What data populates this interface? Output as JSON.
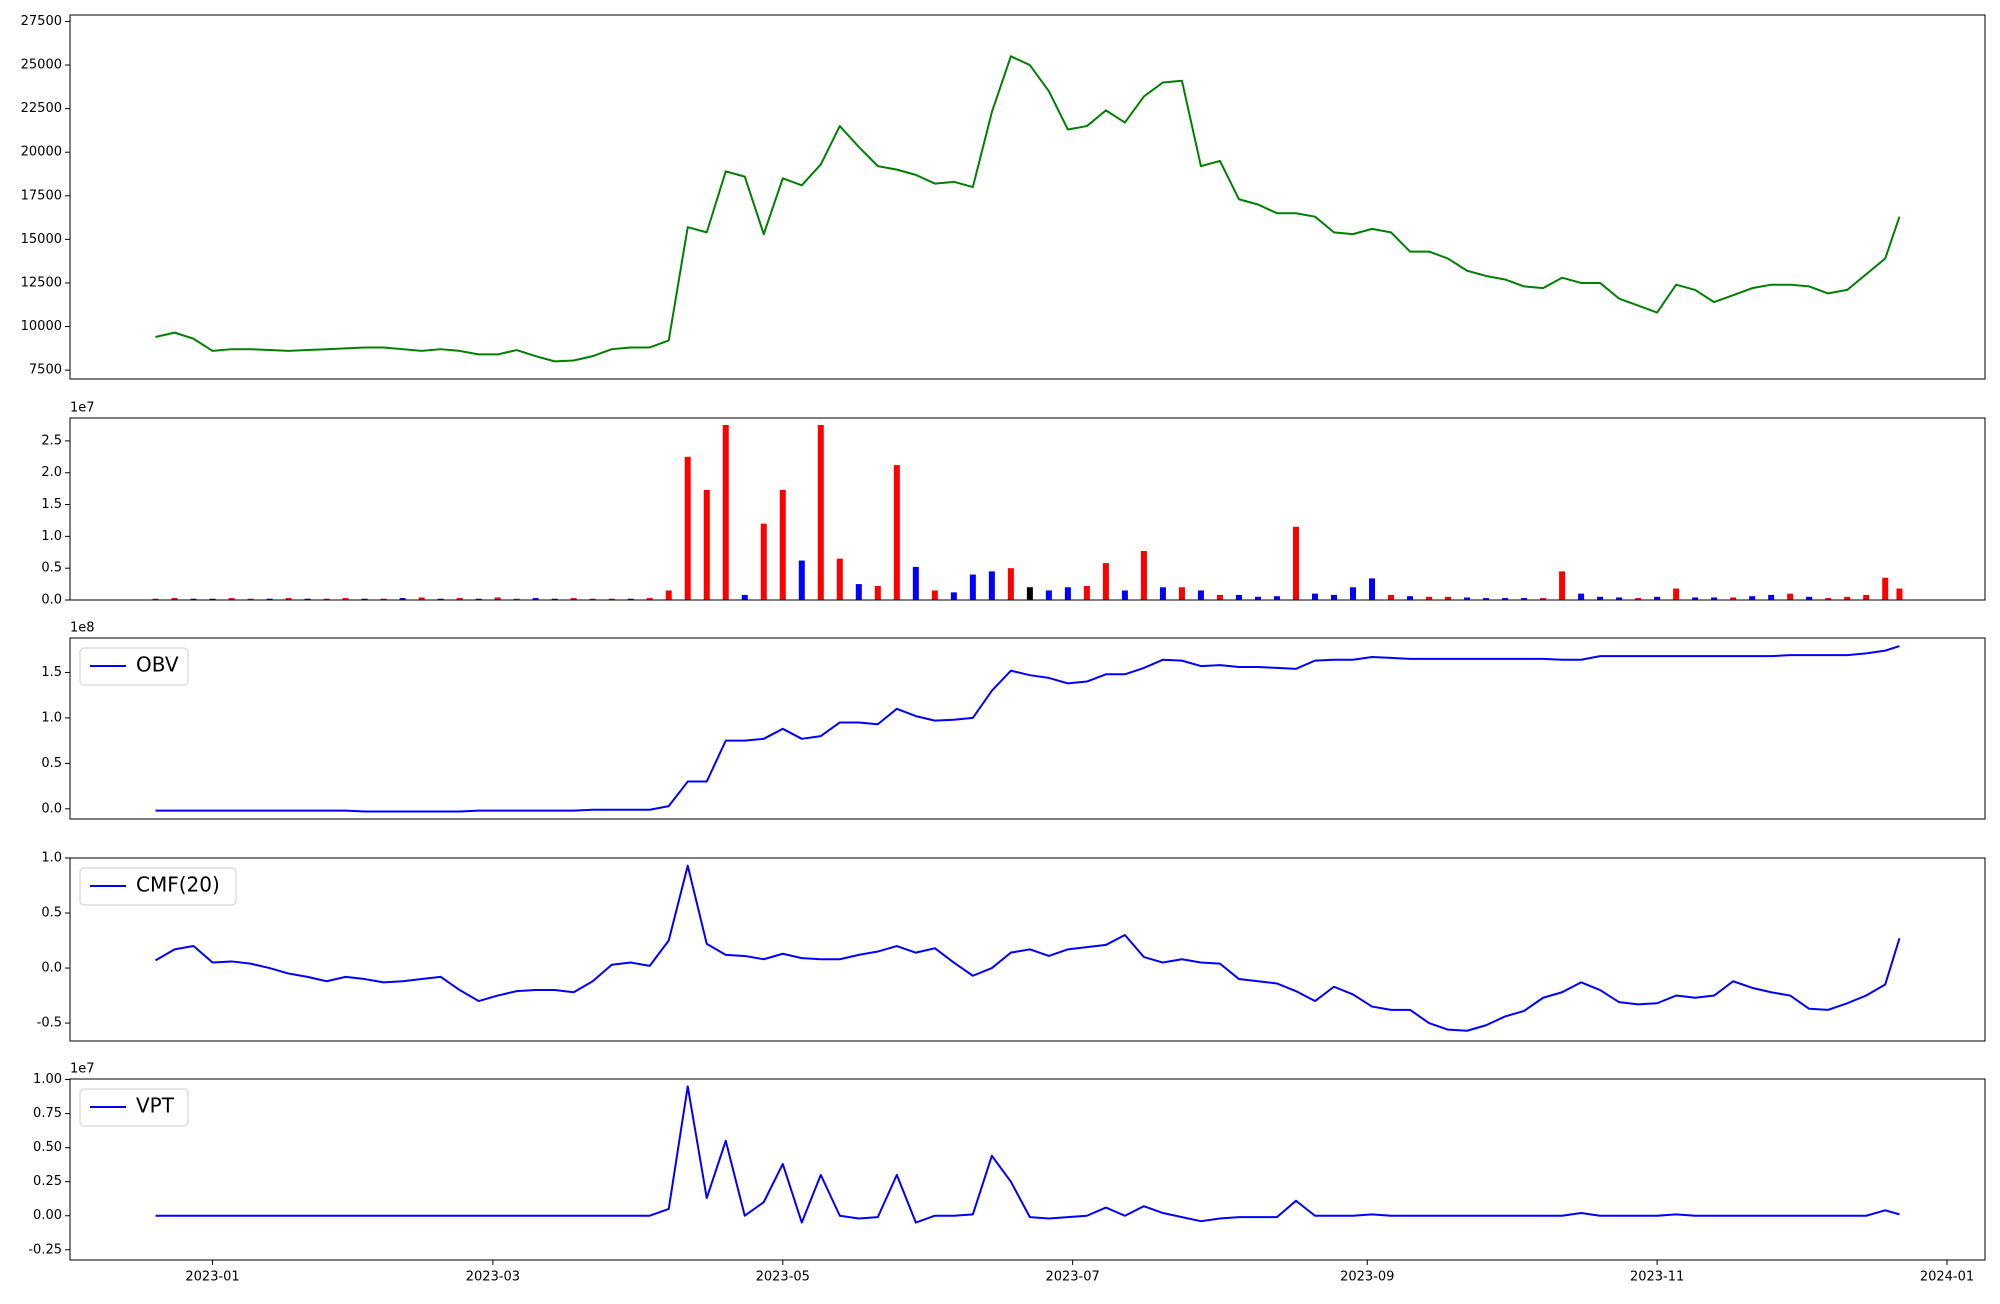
{
  "chart_data": {
    "type": "multi",
    "x": [
      -12,
      -8,
      -4,
      0,
      4,
      8,
      12,
      16,
      20,
      24,
      28,
      32,
      36,
      40,
      44,
      48,
      52,
      56,
      60,
      64,
      68,
      72,
      76,
      80,
      84,
      88,
      92,
      96,
      100,
      104,
      108,
      112,
      116,
      120,
      124,
      128,
      132,
      136,
      140,
      144,
      148,
      152,
      156,
      160,
      164,
      168,
      172,
      176,
      180,
      184,
      188,
      192,
      196,
      200,
      204,
      208,
      212,
      216,
      220,
      224,
      228,
      232,
      236,
      240,
      244,
      248,
      252,
      256,
      260,
      264,
      268,
      272,
      276,
      280,
      284,
      288,
      292,
      296,
      300,
      304,
      308,
      312,
      316,
      320,
      324,
      328,
      332,
      336,
      340,
      344,
      348,
      352,
      355
    ],
    "xlim": [
      -30,
      373
    ],
    "xticks": [
      {
        "value": 0,
        "label": "2023-01"
      },
      {
        "value": 59,
        "label": "2023-03"
      },
      {
        "value": 120,
        "label": "2023-05"
      },
      {
        "value": 181,
        "label": "2023-07"
      },
      {
        "value": 243,
        "label": "2023-09"
      },
      {
        "value": 304,
        "label": "2023-11"
      },
      {
        "value": 365,
        "label": "2024-01"
      }
    ],
    "panels": [
      {
        "type": "line",
        "color": "green",
        "values": [
          9400,
          9650,
          9300,
          8600,
          8700,
          8700,
          8650,
          8600,
          8650,
          8700,
          8750,
          8800,
          8800,
          8700,
          8600,
          8700,
          8600,
          8400,
          8400,
          8650,
          8300,
          8000,
          8050,
          8300,
          8700,
          8800,
          8800,
          9200,
          15700,
          15400,
          18900,
          18600,
          15300,
          18500,
          18100,
          19300,
          21500,
          20300,
          19200,
          19000,
          18700,
          18200,
          18300,
          18000,
          22300,
          25500,
          25000,
          23500,
          21300,
          21500,
          22400,
          21700,
          23200,
          24000,
          24100,
          19200,
          19500,
          17300,
          17000,
          16500,
          16500,
          16300,
          15400,
          15300,
          15600,
          15400,
          14300,
          14300,
          13900,
          13200,
          12900,
          12700,
          12300,
          12200,
          12800,
          12500,
          12500,
          11600,
          11200,
          10800,
          12400,
          12100,
          11400,
          11800,
          12200,
          12400,
          12400,
          12300,
          11900,
          12100,
          13000,
          13900,
          16300
        ],
        "ylim": [
          6990,
          27870
        ],
        "yticks": [
          7500,
          10000,
          12500,
          15000,
          17500,
          20000,
          22500,
          25000,
          27500
        ]
      },
      {
        "type": "bar",
        "offset_label": "1e7",
        "values": [
          0.02,
          0.03,
          0.02,
          0.02,
          0.03,
          0.02,
          0.02,
          0.03,
          0.02,
          0.02,
          0.03,
          0.02,
          0.02,
          0.03,
          0.04,
          0.02,
          0.03,
          0.02,
          0.04,
          0.02,
          0.03,
          0.02,
          0.03,
          0.02,
          0.02,
          0.02,
          0.03,
          0.15,
          2.25,
          1.73,
          2.75,
          0.08,
          1.2,
          1.73,
          0.62,
          2.75,
          0.65,
          0.25,
          0.22,
          2.12,
          0.52,
          0.15,
          0.12,
          0.4,
          0.45,
          0.5,
          0.2,
          0.15,
          0.2,
          0.22,
          0.58,
          0.15,
          0.77,
          0.2,
          0.2,
          0.15,
          0.08,
          0.08,
          0.05,
          0.06,
          1.15,
          0.1,
          0.08,
          0.2,
          0.34,
          0.08,
          0.06,
          0.05,
          0.05,
          0.04,
          0.03,
          0.03,
          0.03,
          0.03,
          0.45,
          0.1,
          0.05,
          0.04,
          0.03,
          0.05,
          0.18,
          0.04,
          0.04,
          0.04,
          0.06,
          0.08,
          0.1,
          0.05,
          0.03,
          0.05,
          0.08,
          0.35,
          0.18
        ],
        "colors": [
          "red",
          "red",
          "blue",
          "blue",
          "red",
          "red",
          "blue",
          "red",
          "blue",
          "red",
          "red",
          "blue",
          "red",
          "blue",
          "red",
          "blue",
          "red",
          "blue",
          "red",
          "red",
          "blue",
          "blue",
          "red",
          "red",
          "red",
          "blue",
          "red",
          "red",
          "red",
          "red",
          "red",
          "blue",
          "red",
          "red",
          "blue",
          "red",
          "red",
          "blue",
          "red",
          "red",
          "blue",
          "red",
          "blue",
          "blue",
          "blue",
          "red",
          "black",
          "blue",
          "blue",
          "red",
          "red",
          "blue",
          "red",
          "blue",
          "red",
          "blue",
          "red",
          "blue",
          "blue",
          "blue",
          "red",
          "blue",
          "blue",
          "blue",
          "blue",
          "red",
          "blue",
          "red",
          "red",
          "blue",
          "blue",
          "blue",
          "blue",
          "red",
          "red",
          "blue",
          "blue",
          "blue",
          "red",
          "blue",
          "red",
          "blue",
          "blue",
          "red",
          "blue",
          "blue",
          "red",
          "blue",
          "red",
          "red",
          "red",
          "red",
          "red"
        ],
        "ylim": [
          0,
          2.86
        ],
        "yticks": [
          {
            "value": 0,
            "label": "0.0"
          },
          0.5,
          {
            "value": 1,
            "label": "1.0"
          },
          1.5,
          {
            "value": 2,
            "label": "2.0"
          },
          2.5
        ]
      },
      {
        "type": "line",
        "offset_label": "1e8",
        "series": [
          {
            "name": "OBV",
            "color": "blue",
            "values": [
              -0.02,
              -0.02,
              -0.02,
              -0.02,
              -0.02,
              -0.02,
              -0.02,
              -0.02,
              -0.02,
              -0.02,
              -0.02,
              -0.03,
              -0.03,
              -0.03,
              -0.03,
              -0.03,
              -0.03,
              -0.02,
              -0.02,
              -0.02,
              -0.02,
              -0.02,
              -0.02,
              -0.01,
              -0.01,
              -0.01,
              -0.01,
              0.03,
              0.3,
              0.3,
              0.75,
              0.75,
              0.77,
              0.88,
              0.77,
              0.8,
              0.95,
              0.95,
              0.93,
              1.1,
              1.02,
              0.97,
              0.98,
              1.0,
              1.3,
              1.52,
              1.47,
              1.44,
              1.38,
              1.4,
              1.48,
              1.48,
              1.55,
              1.64,
              1.63,
              1.57,
              1.58,
              1.56,
              1.56,
              1.55,
              1.54,
              1.63,
              1.64,
              1.64,
              1.67,
              1.66,
              1.65,
              1.65,
              1.65,
              1.65,
              1.65,
              1.65,
              1.65,
              1.65,
              1.64,
              1.64,
              1.68,
              1.68,
              1.68,
              1.68,
              1.68,
              1.68,
              1.68,
              1.68,
              1.68,
              1.68,
              1.69,
              1.69,
              1.69,
              1.69,
              1.71,
              1.74,
              1.79
            ]
          }
        ],
        "ylim": [
          -0.112,
          1.879
        ],
        "yticks": [
          {
            "value": 0,
            "label": "0.0"
          },
          0.5,
          {
            "value": 1,
            "label": "1.0"
          },
          1.5
        ]
      },
      {
        "type": "line",
        "series": [
          {
            "name": "CMF(20)",
            "color": "blue",
            "values": [
              0.07,
              0.17,
              0.2,
              0.05,
              0.06,
              0.04,
              0.0,
              -0.05,
              -0.08,
              -0.12,
              -0.08,
              -0.1,
              -0.13,
              -0.12,
              -0.1,
              -0.08,
              -0.2,
              -0.3,
              -0.25,
              -0.21,
              -0.2,
              -0.2,
              -0.22,
              -0.12,
              0.03,
              0.05,
              0.02,
              0.25,
              0.93,
              0.22,
              0.12,
              0.11,
              0.08,
              0.13,
              0.09,
              0.08,
              0.08,
              0.12,
              0.15,
              0.2,
              0.14,
              0.18,
              0.05,
              -0.07,
              0.0,
              0.14,
              0.17,
              0.11,
              0.17,
              0.19,
              0.21,
              0.3,
              0.1,
              0.05,
              0.08,
              0.05,
              0.04,
              -0.1,
              -0.12,
              -0.14,
              -0.21,
              -0.3,
              -0.17,
              -0.24,
              -0.35,
              -0.38,
              -0.38,
              -0.5,
              -0.56,
              -0.57,
              -0.52,
              -0.44,
              -0.39,
              -0.27,
              -0.22,
              -0.13,
              -0.2,
              -0.31,
              -0.33,
              -0.32,
              -0.25,
              -0.27,
              -0.25,
              -0.12,
              -0.18,
              -0.22,
              -0.25,
              -0.37,
              -0.38,
              -0.32,
              -0.25,
              -0.15,
              0.27
            ]
          }
        ],
        "ylim": [
          -0.663,
          1.0
        ],
        "yticks": [
          -0.5,
          {
            "value": 0,
            "label": "0.0"
          },
          0.5,
          {
            "value": 1,
            "label": "1.0"
          }
        ]
      },
      {
        "type": "line",
        "offset_label": "1e7",
        "series": [
          {
            "name": "VPT",
            "color": "blue",
            "values": [
              0,
              0,
              0,
              0,
              0,
              0,
              0,
              0,
              0,
              0,
              0,
              0,
              0,
              0,
              0,
              0,
              0,
              0,
              0,
              0,
              0,
              0,
              0,
              0,
              0,
              0,
              0,
              0.05,
              0.95,
              0.13,
              0.55,
              0,
              0.1,
              0.38,
              -0.05,
              0.3,
              0,
              -0.02,
              -0.01,
              0.3,
              -0.05,
              0,
              0,
              0.01,
              0.44,
              0.25,
              -0.01,
              -0.02,
              -0.01,
              0,
              0.06,
              0,
              0.07,
              0.02,
              -0.01,
              -0.04,
              -0.02,
              -0.01,
              -0.01,
              -0.01,
              0.11,
              0,
              0,
              0,
              0.01,
              0,
              0,
              0,
              0,
              0,
              0,
              0,
              0,
              0,
              0,
              0.02,
              0,
              0,
              0,
              0,
              0.01,
              0,
              0,
              0,
              0,
              0,
              0,
              0,
              0,
              0,
              0,
              0.04,
              0.01
            ]
          }
        ],
        "ylim": [
          -0.325,
          1.004
        ],
        "yticks": [
          -0.25,
          {
            "value": 0,
            "label": "0.00"
          },
          0.25,
          {
            "value": 0.5,
            "label": "0.50"
          },
          0.75,
          {
            "value": 1,
            "label": "1.00"
          }
        ]
      }
    ]
  }
}
